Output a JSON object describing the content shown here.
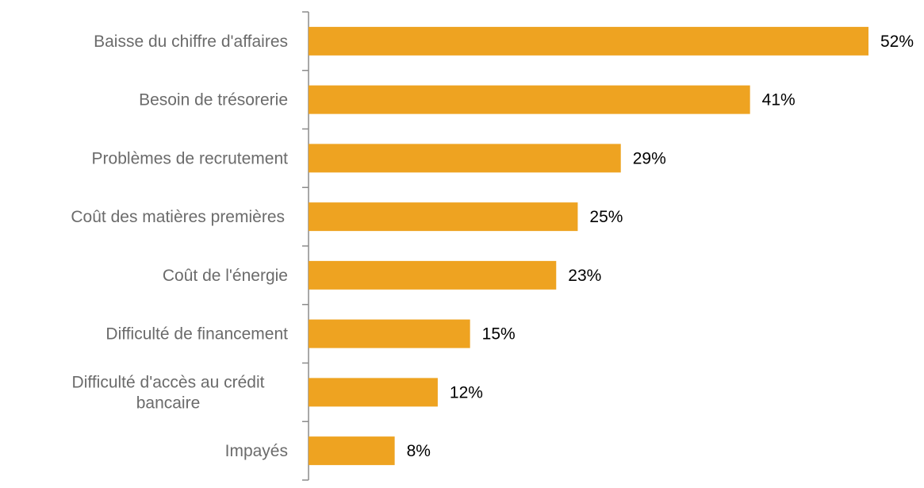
{
  "chart_data": {
    "type": "bar",
    "orientation": "horizontal",
    "categories": [
      "Baisse du chiffre d'affaires",
      "Besoin de trésorerie",
      "Problèmes de recrutement",
      "Coût des matières premières",
      "Coût de l'énergie",
      "Difficulté de financement",
      "Difficulté d'accès au crédit bancaire",
      "Impayés"
    ],
    "category_lines": [
      [
        "Baisse du chiffre d'affaires"
      ],
      [
        "Besoin de trésorerie"
      ],
      [
        "Problèmes de recrutement"
      ],
      [
        "Coût des matières premières"
      ],
      [
        "Coût de l'énergie"
      ],
      [
        "Difficulté de financement"
      ],
      [
        "Difficulté d'accès au crédit",
        "bancaire"
      ],
      [
        "Impayés"
      ]
    ],
    "values": [
      52,
      41,
      29,
      25,
      23,
      15,
      12,
      8
    ],
    "value_labels": [
      "52%",
      "41%",
      "29%",
      "25%",
      "23%",
      "15%",
      "12%",
      "8%"
    ],
    "unit": "%",
    "xlim": [
      0,
      52
    ],
    "bar_color": "#eea321",
    "axis_color": "#8c8c8c",
    "label_color": "#6b6b6b",
    "value_label_color": "#000000",
    "grid": false,
    "legend": "none"
  }
}
